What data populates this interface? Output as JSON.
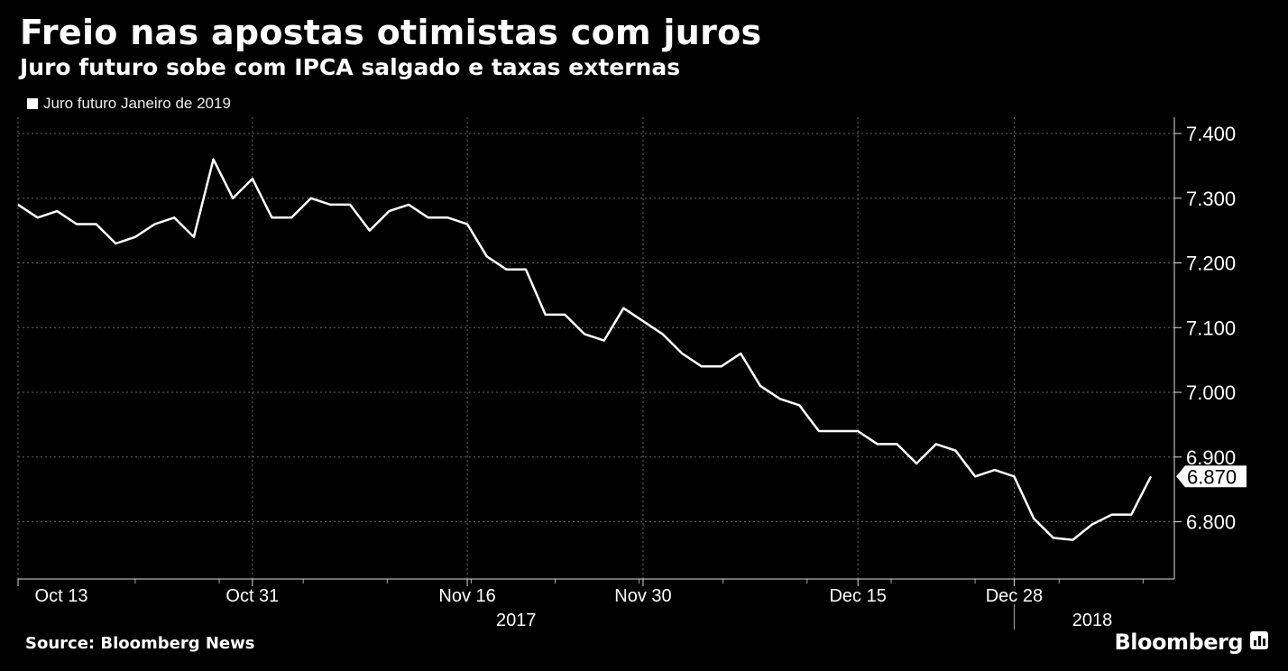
{
  "header": {
    "title": "Freio nas apostas otimistas com juros",
    "subtitle": "Juro futuro sobe com IPCA salgado e taxas externas"
  },
  "footer": {
    "source": "Source: Bloomberg News",
    "brand": "Bloomberg"
  },
  "colors": {
    "background": "#000000",
    "line": "#ffffff",
    "grid": "#666666"
  },
  "chart_data": {
    "type": "line",
    "title": "Freio nas apostas otimistas com juros",
    "subtitle": "Juro futuro sobe com IPCA salgado e taxas externas",
    "xlabel": "",
    "ylabel": "",
    "ylim": [
      6.73,
      7.42
    ],
    "yticks": [
      7.4,
      7.3,
      7.2,
      7.1,
      7.0,
      6.9,
      6.8
    ],
    "ytick_labels": [
      "7.400",
      "7.300",
      "7.200",
      "7.100",
      "7.000",
      "6.900",
      "6.800"
    ],
    "xtick_labels": [
      {
        "label": "Oct 13",
        "index": 0
      },
      {
        "label": "Oct 31",
        "index": 12
      },
      {
        "label": "Nov 16",
        "index": 23
      },
      {
        "label": "Nov 30",
        "index": 32
      },
      {
        "label": "Dec 15",
        "index": 43
      },
      {
        "label": "Dec 28",
        "index": 51
      }
    ],
    "year_labels": [
      {
        "label": "2017",
        "index": 25.5
      },
      {
        "label": "2018",
        "index": 55
      }
    ],
    "year_divider_index": 51,
    "last_value_label": "6.870",
    "grid": true,
    "legend_position": "top-left",
    "series": [
      {
        "name": "Juro futuro Janeiro de 2019",
        "values": [
          7.29,
          7.27,
          7.28,
          7.26,
          7.26,
          7.23,
          7.24,
          7.26,
          7.27,
          7.24,
          7.36,
          7.3,
          7.33,
          7.27,
          7.27,
          7.3,
          7.29,
          7.29,
          7.25,
          7.28,
          7.29,
          7.27,
          7.27,
          7.26,
          7.21,
          7.19,
          7.19,
          7.12,
          7.12,
          7.09,
          7.08,
          7.13,
          7.11,
          7.09,
          7.06,
          7.04,
          7.04,
          7.06,
          7.01,
          6.99,
          6.98,
          6.94,
          6.94,
          6.94,
          6.92,
          6.92,
          6.89,
          6.92,
          6.91,
          6.87,
          6.88,
          6.87,
          6.805,
          6.775,
          6.772,
          6.796,
          6.811,
          6.811,
          6.87
        ]
      }
    ]
  }
}
